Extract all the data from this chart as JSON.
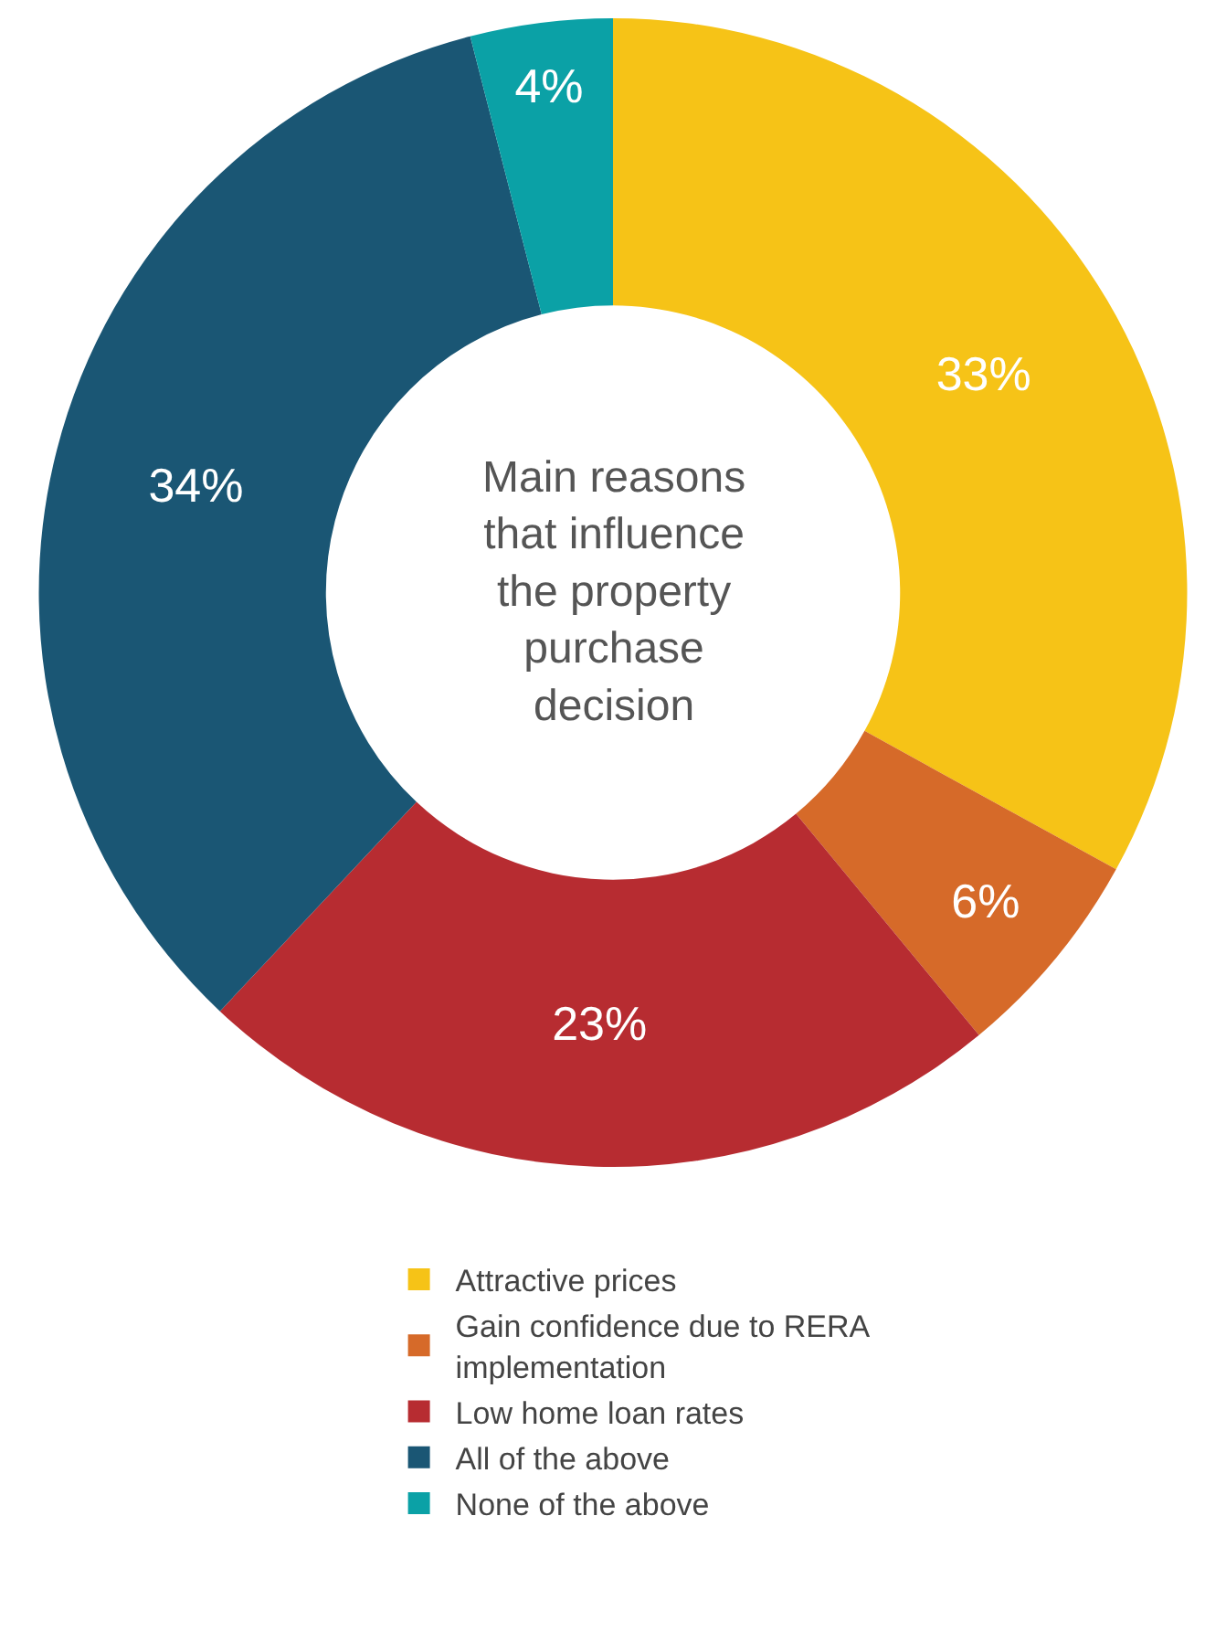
{
  "chart_data": {
    "type": "donut",
    "title": "Main reasons that influence the property purchase decision",
    "categories": [
      "Attractive prices",
      "Gain confidence due to RERA implementation",
      "Low home loan rates",
      "All of the above",
      "None of the above"
    ],
    "values": [
      33,
      6,
      23,
      34,
      4
    ],
    "value_labels": [
      "33%",
      "6%",
      "23%",
      "34%",
      "4%"
    ],
    "colors": [
      "#f6c317",
      "#d66a29",
      "#b72c31",
      "#1a5674",
      "#0ba1a6"
    ],
    "legend": "bottom"
  }
}
